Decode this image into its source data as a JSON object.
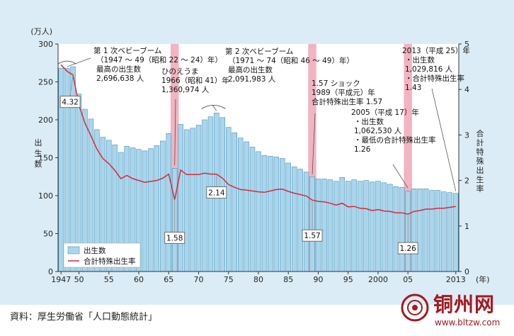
{
  "chart_data": {
    "type": "bar",
    "y_unit": "(万人)",
    "y_left_label": "出生数",
    "y_right_label": "合計特殊出生率",
    "x_unit": "(年)",
    "ylim_left": [
      0,
      300
    ],
    "ylim_right": [
      0,
      5
    ],
    "yticks_left": [
      "0",
      "50",
      "100",
      "150",
      "200",
      "250",
      "300"
    ],
    "yticks_right": [
      "0",
      "1",
      "2",
      "3",
      "4",
      "5"
    ],
    "xticks": [
      {
        "year": 1947,
        "label": "1947"
      },
      {
        "year": 1950,
        "label": "50"
      },
      {
        "year": 1955,
        "label": "55"
      },
      {
        "year": 1960,
        "label": "60"
      },
      {
        "year": 1965,
        "label": "65"
      },
      {
        "year": 1970,
        "label": "70"
      },
      {
        "year": 1975,
        "label": "75"
      },
      {
        "year": 1980,
        "label": "80"
      },
      {
        "year": 1985,
        "label": "85"
      },
      {
        "year": 1990,
        "label": "90"
      },
      {
        "year": 1995,
        "label": "95"
      },
      {
        "year": 2000,
        "label": "2000"
      },
      {
        "year": 2005,
        "label": "05"
      },
      {
        "year": 2013,
        "label": "2013"
      }
    ],
    "years": [
      1947,
      1948,
      1949,
      1950,
      1951,
      1952,
      1953,
      1954,
      1955,
      1956,
      1957,
      1958,
      1959,
      1960,
      1961,
      1962,
      1963,
      1964,
      1965,
      1966,
      1967,
      1968,
      1969,
      1970,
      1971,
      1972,
      1973,
      1974,
      1975,
      1976,
      1977,
      1978,
      1979,
      1980,
      1981,
      1982,
      1983,
      1984,
      1985,
      1986,
      1987,
      1988,
      1989,
      1990,
      1991,
      1992,
      1993,
      1994,
      1995,
      1996,
      1997,
      1998,
      1999,
      2000,
      2001,
      2002,
      2003,
      2004,
      2005,
      2006,
      2007,
      2008,
      2009,
      2010,
      2011,
      2012,
      2013
    ],
    "series": [
      {
        "name": "出生数",
        "type": "bar",
        "axis": "left",
        "values": [
          268,
          268,
          270,
          234,
          214,
          201,
          187,
          177,
          173,
          167,
          157,
          165,
          163,
          161,
          159,
          162,
          166,
          172,
          182,
          136,
          194,
          187,
          189,
          193,
          200,
          204,
          209,
          203,
          190,
          183,
          176,
          171,
          164,
          158,
          153,
          152,
          151,
          149,
          143,
          138,
          135,
          131,
          125,
          122,
          122,
          121,
          119,
          124,
          119,
          121,
          119,
          120,
          118,
          119,
          117,
          115,
          112,
          111,
          106,
          109,
          109,
          109,
          107,
          107,
          105,
          104,
          103
        ]
      },
      {
        "name": "合計特殊出生率",
        "type": "line",
        "axis": "right",
        "values": [
          4.54,
          4.4,
          4.32,
          3.65,
          3.26,
          2.98,
          2.69,
          2.48,
          2.37,
          2.22,
          2.04,
          2.11,
          2.04,
          2.0,
          1.96,
          1.98,
          2.0,
          2.05,
          2.14,
          1.58,
          2.23,
          2.13,
          2.13,
          2.13,
          2.16,
          2.14,
          2.14,
          2.05,
          1.91,
          1.85,
          1.8,
          1.79,
          1.77,
          1.75,
          1.74,
          1.77,
          1.8,
          1.81,
          1.76,
          1.72,
          1.69,
          1.66,
          1.57,
          1.54,
          1.53,
          1.5,
          1.46,
          1.5,
          1.42,
          1.43,
          1.39,
          1.38,
          1.34,
          1.36,
          1.33,
          1.32,
          1.29,
          1.29,
          1.26,
          1.32,
          1.34,
          1.37,
          1.37,
          1.39,
          1.39,
          1.41,
          1.43
        ]
      }
    ],
    "highlight_years": [
      1966,
      1989,
      2005
    ],
    "value_labels": [
      {
        "year": 1949,
        "value": 4.32,
        "text": "4.32"
      },
      {
        "year": 1966,
        "value": 1.58,
        "text": "1.58"
      },
      {
        "year": 1973,
        "value": 2.14,
        "text": "2.14"
      },
      {
        "year": 1989,
        "value": 1.57,
        "text": "1.57"
      },
      {
        "year": 2005,
        "value": 1.26,
        "text": "1.26"
      }
    ],
    "annotations": [
      {
        "id": "boom1",
        "lines": [
          "第 1 次ベビーブーム",
          "（1947 ～ 49（昭和 22 ～ 24）年）",
          "最高の出生数",
          "2,696,638 人"
        ]
      },
      {
        "id": "hinoe",
        "lines": [
          "ひのえうま",
          "1966（昭和 41）年",
          "1,360,974 人"
        ]
      },
      {
        "id": "boom2",
        "lines": [
          "第 2 次ベビーブーム",
          "（1971 ～ 74（昭和 46 ～ 49）年）",
          "最高の出生数",
          "2,091,983 人"
        ]
      },
      {
        "id": "shock",
        "lines": [
          "1.57 ショック",
          "1989（平成元）年",
          "合計特殊出生率 1.57"
        ]
      },
      {
        "id": "y2005",
        "lines": [
          "2005（平成 17）年",
          "・出生数",
          "1,062,530 人",
          "・最低の合計特殊出生率",
          "1.26"
        ]
      },
      {
        "id": "y2013",
        "lines": [
          "2013（平成 25）年",
          "・出生数",
          "1,029,816 人",
          "・合計特殊出生率",
          "1.43"
        ]
      }
    ],
    "legend": {
      "placement": "bottom-left",
      "bar": "出生数",
      "line": "合計特殊出生率"
    },
    "colors": {
      "bar": "#a9d6ec",
      "bar_stroke": "#4c90b6",
      "line": "#d9283c",
      "highlight": "#f2b4c0",
      "background": "#dcecf6"
    }
  },
  "source": "資料：厚生労働省「人口動態統計」",
  "watermark": {
    "title": "铜州网",
    "url": "www.bltzw.com"
  }
}
